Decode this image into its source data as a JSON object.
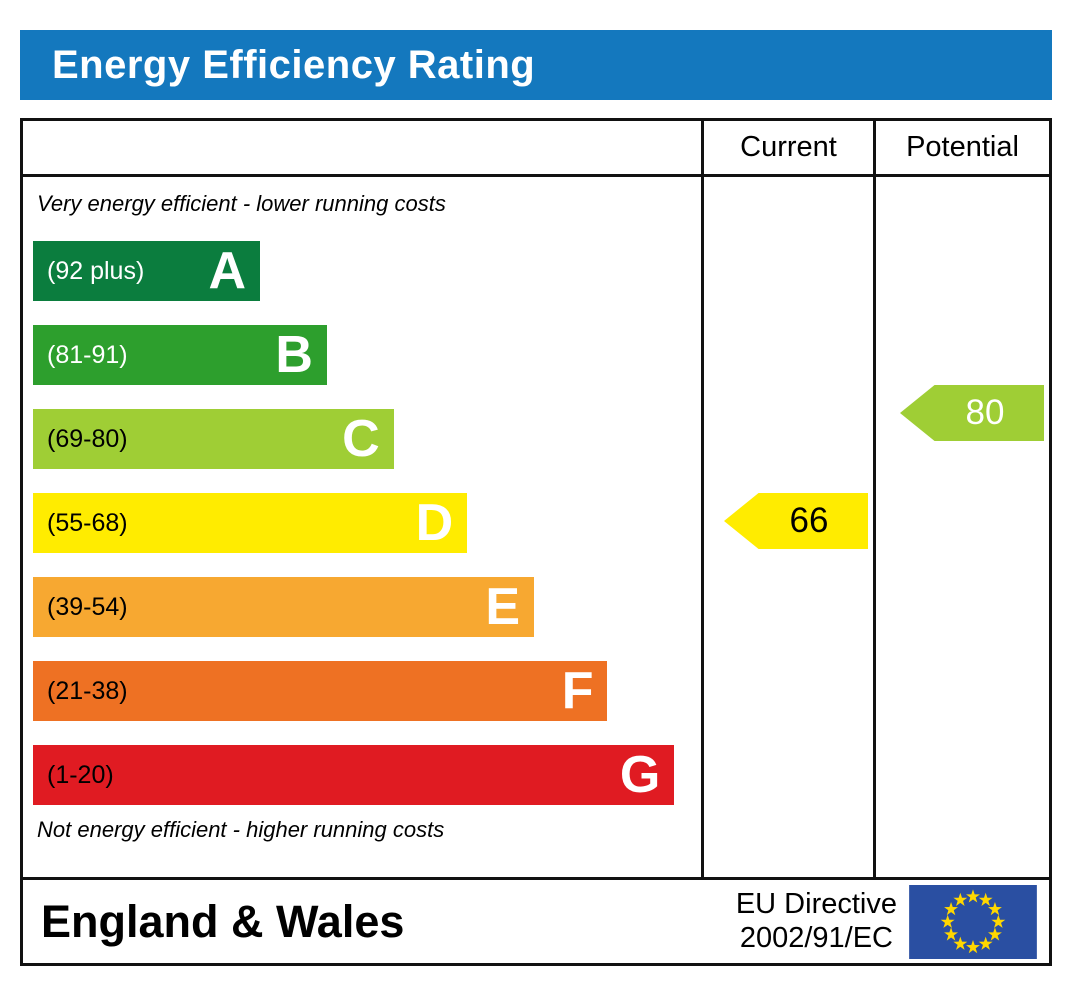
{
  "title": "Energy Efficiency Rating",
  "theme": {
    "header_bg": "#1478be"
  },
  "table": {
    "current_header": "Current",
    "potential_header": "Potential"
  },
  "notes": {
    "top": "Very energy efficient - lower running costs",
    "bottom": "Not energy efficient - higher running costs"
  },
  "bands": [
    {
      "letter": "A",
      "range": "(92 plus)",
      "color": "#0b7d3e",
      "range_color": "#ffffff",
      "width": "34%"
    },
    {
      "letter": "B",
      "range": "(81-91)",
      "color": "#2d9f2d",
      "range_color": "#ffffff",
      "width": "44%"
    },
    {
      "letter": "C",
      "range": "(69-80)",
      "color": "#9fce35",
      "range_color": "#000000",
      "width": "54%"
    },
    {
      "letter": "D",
      "range": "(55-68)",
      "color": "#ffec00",
      "range_color": "#000000",
      "width": "65%"
    },
    {
      "letter": "E",
      "range": "(39-54)",
      "color": "#f7a831",
      "range_color": "#000000",
      "width": "75%"
    },
    {
      "letter": "F",
      "range": "(21-38)",
      "color": "#ee7123",
      "range_color": "#000000",
      "width": "86%"
    },
    {
      "letter": "G",
      "range": "(1-20)",
      "color": "#e01b22",
      "range_color": "#000000",
      "width": "96%"
    }
  ],
  "current": {
    "value": "66",
    "color": "#ffec00",
    "text_color": "#000000"
  },
  "potential": {
    "value": "80",
    "color": "#9fce35",
    "text_color": "#ffffff"
  },
  "footer": {
    "region": "England & Wales",
    "directive_line1": "EU Directive",
    "directive_line2": "2002/91/EC",
    "flag": {
      "background": "#2a4fa2",
      "star_color": "#ffd700"
    }
  },
  "chart_data": {
    "type": "epc_rating_chart",
    "title": "Energy Efficiency Rating",
    "region": "England & Wales",
    "directive": "EU Directive 2002/91/EC",
    "bands": [
      {
        "letter": "A",
        "label": "(92 plus)",
        "min": 92
      },
      {
        "letter": "B",
        "label": "(81-91)",
        "min": 81,
        "max": 91
      },
      {
        "letter": "C",
        "label": "(69-80)",
        "min": 69,
        "max": 80
      },
      {
        "letter": "D",
        "label": "(55-68)",
        "min": 55,
        "max": 68
      },
      {
        "letter": "E",
        "label": "(39-54)",
        "min": 39,
        "max": 54
      },
      {
        "letter": "F",
        "label": "(21-38)",
        "min": 21,
        "max": 38
      },
      {
        "letter": "G",
        "label": "(1-20)",
        "min": 1,
        "max": 20
      }
    ],
    "current": {
      "value": 66,
      "band": "D"
    },
    "potential": {
      "value": 80,
      "band": "C"
    }
  }
}
